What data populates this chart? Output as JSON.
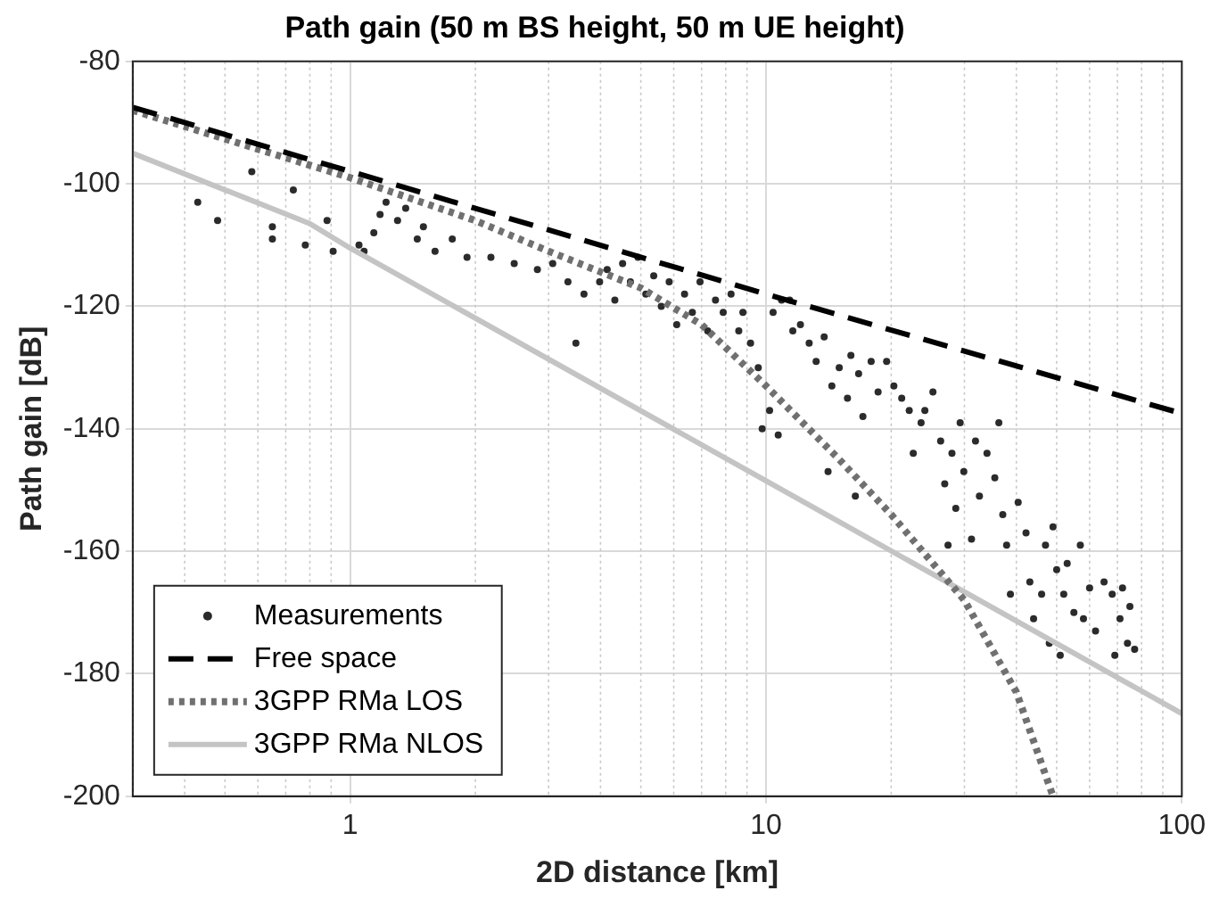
{
  "chart_data": {
    "type": "scatter",
    "title": "Path gain (50 m BS height, 50 m UE height)",
    "xlabel": "2D distance [km]",
    "ylabel": "Path gain [dB]",
    "log": "x",
    "grid": true,
    "legend": "bottom left",
    "xlim": [
      0.3,
      100
    ],
    "xticks": [
      1,
      10,
      100
    ],
    "ylim": [
      -200,
      -80
    ],
    "yticks": [
      -200,
      -180,
      -160,
      -140,
      -120,
      -100,
      -80
    ],
    "series": [
      {
        "name": "Measurements",
        "marker": "circle",
        "color": "#2b2b2b",
        "x": [
          0.43,
          0.48,
          0.58,
          0.65,
          0.65,
          0.73,
          0.78,
          0.88,
          0.91,
          1.05,
          1.08,
          1.14,
          1.18,
          1.22,
          1.3,
          1.36,
          1.45,
          1.5,
          1.6,
          1.76,
          1.91,
          2.18,
          2.48,
          2.82,
          3.07,
          3.34,
          3.49,
          3.65,
          3.98,
          4.15,
          4.33,
          4.52,
          4.72,
          4.92,
          5.14,
          5.37,
          5.6,
          5.85,
          6.1,
          6.37,
          6.65,
          6.94,
          7.24,
          7.56,
          7.89,
          8.24,
          8.6,
          8.8,
          9.18,
          9.58,
          9.79,
          10.2,
          10.4,
          10.7,
          10.9,
          11.4,
          11.6,
          12.1,
          12.7,
          13.2,
          13.8,
          14.1,
          14.4,
          15,
          15.7,
          16,
          16.4,
          16.7,
          17.1,
          17.9,
          18.6,
          19.5,
          20.3,
          21.2,
          22.1,
          22.6,
          23.6,
          24.1,
          25.2,
          26.3,
          26.9,
          27.4,
          28,
          28.6,
          29.3,
          29.9,
          31.2,
          31.9,
          32.6,
          34,
          35.5,
          36.3,
          37.1,
          37.9,
          38.7,
          40.4,
          42.2,
          43.1,
          44,
          46,
          47,
          48,
          49,
          50,
          51,
          52,
          53,
          55,
          57,
          58,
          60,
          62,
          65,
          68,
          69,
          71,
          72,
          74,
          75,
          77
        ],
        "values": [
          -103,
          -106,
          -98,
          -107,
          -109,
          -101,
          -110,
          -106,
          -111,
          -110,
          -111,
          -108,
          -105,
          -103,
          -106,
          -104,
          -109,
          -107,
          -111,
          -109,
          -112,
          -112,
          -113,
          -114,
          -113,
          -116,
          -126,
          -118,
          -116,
          -114,
          -119,
          -113,
          -116,
          -112,
          -118,
          -115,
          -120,
          -116,
          -123,
          -118,
          -121,
          -116,
          -124,
          -119,
          -121,
          -118,
          -124,
          -121,
          -126,
          -130,
          -140,
          -137,
          -121,
          -141,
          -119,
          -119,
          -124,
          -123,
          -126,
          -129,
          -125,
          -147,
          -133,
          -130,
          -135,
          -128,
          -151,
          -131,
          -138,
          -129,
          -134,
          -129,
          -133,
          -135,
          -137,
          -144,
          -139,
          -137,
          -134,
          -142,
          -149,
          -159,
          -144,
          -153,
          -139,
          -147,
          -158,
          -142,
          -151,
          -144,
          -148,
          -139,
          -154,
          -159,
          -167,
          -152,
          -157,
          -165,
          -171,
          -167,
          -159,
          -175,
          -156,
          -163,
          -177,
          -167,
          -162,
          -170,
          -159,
          -171,
          -166,
          -173,
          -165,
          -167,
          -177,
          -171,
          -166,
          -175,
          -169,
          -176
        ]
      },
      {
        "name": "Free space",
        "type": "line",
        "line_style": "dashed",
        "marker": "none",
        "color": "#000000",
        "x": [
          0.3,
          10,
          100
        ],
        "values": [
          -87.5,
          -118,
          -137.5
        ]
      },
      {
        "name": "3GPP RMa LOS",
        "type": "line",
        "line_style": "dotted",
        "marker": "none",
        "color": "#707070",
        "x": [
          0.3,
          1,
          2,
          3,
          5,
          7,
          10,
          15,
          20,
          30,
          40,
          49
        ],
        "values": [
          -88,
          -99,
          -106,
          -111,
          -117,
          -123,
          -133,
          -145,
          -154,
          -168,
          -183,
          -200
        ]
      },
      {
        "name": "3GPP RMa NLOS",
        "type": "line",
        "line_style": "solid",
        "marker": "none",
        "color": "#c4c4c4",
        "x": [
          0.3,
          0.8,
          1,
          10,
          100
        ],
        "values": [
          -95,
          -106.5,
          -110.5,
          -148.5,
          -186.5
        ]
      }
    ]
  }
}
